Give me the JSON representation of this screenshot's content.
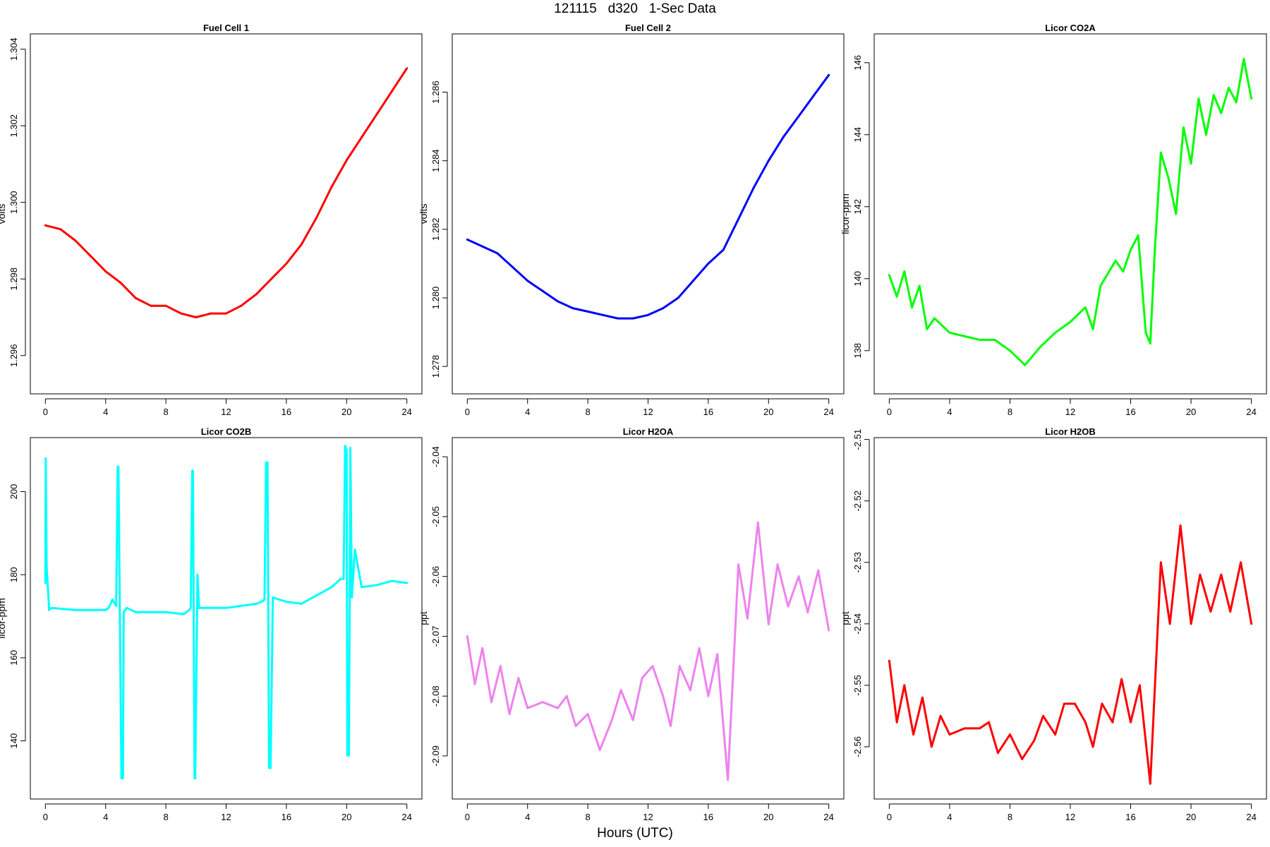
{
  "title": "121115   d320   1-Sec Data",
  "xlabel": "Hours (UTC)",
  "chart_data": [
    {
      "type": "line",
      "title": "Fuel Cell 1",
      "xlabel": "",
      "ylabel": "volts",
      "color": "#ff0000",
      "xlim": [
        -1,
        25
      ],
      "ylim": [
        1.295,
        1.3044
      ],
      "xticks": [
        0,
        4,
        8,
        12,
        16,
        20,
        24
      ],
      "yticks": [
        1.296,
        1.298,
        1.3,
        1.302,
        1.304
      ],
      "ytick_labels": [
        "1.296",
        "1.298",
        "1.300",
        "1.302",
        "1.304"
      ],
      "x": [
        0,
        1,
        2,
        3,
        4,
        5,
        6,
        7,
        8,
        9,
        10,
        11,
        12,
        13,
        14,
        15,
        16,
        17,
        18,
        19,
        20,
        21,
        22,
        23,
        24
      ],
      "series": [
        {
          "values": [
            1.2994,
            1.2993,
            1.299,
            1.2986,
            1.2982,
            1.2979,
            1.2975,
            1.2973,
            1.2973,
            1.2971,
            1.297,
            1.2971,
            1.2971,
            1.2973,
            1.2976,
            1.298,
            1.2984,
            1.2989,
            1.2996,
            1.3004,
            1.3011,
            1.3017,
            1.3023,
            1.3029,
            1.3035
          ]
        }
      ]
    },
    {
      "type": "line",
      "title": "Fuel Cell 2",
      "xlabel": "",
      "ylabel": "volts",
      "color": "#0000ff",
      "xlim": [
        -1,
        25
      ],
      "ylim": [
        1.2772,
        1.2877
      ],
      "xticks": [
        0,
        4,
        8,
        12,
        16,
        20,
        24
      ],
      "yticks": [
        1.278,
        1.28,
        1.282,
        1.284,
        1.286
      ],
      "ytick_labels": [
        "1.278",
        "1.280",
        "1.282",
        "1.284",
        "1.286"
      ],
      "x": [
        0,
        1,
        2,
        3,
        4,
        5,
        6,
        7,
        8,
        9,
        10,
        11,
        12,
        13,
        14,
        15,
        16,
        17,
        18,
        19,
        20,
        21,
        22,
        23,
        24
      ],
      "series": [
        {
          "values": [
            1.2817,
            1.2815,
            1.2813,
            1.2809,
            1.2805,
            1.2802,
            1.2799,
            1.2797,
            1.2796,
            1.2795,
            1.2794,
            1.2794,
            1.2795,
            1.2797,
            1.28,
            1.2805,
            1.281,
            1.2814,
            1.2823,
            1.2832,
            1.284,
            1.2847,
            1.2853,
            1.2859,
            1.2865
          ]
        }
      ]
    },
    {
      "type": "line",
      "title": "Licor CO2A",
      "xlabel": "",
      "ylabel": "licor-ppm",
      "color": "#00ff00",
      "xlim": [
        -1,
        25
      ],
      "ylim": [
        136.8,
        146.8
      ],
      "xticks": [
        0,
        4,
        8,
        12,
        16,
        20,
        24
      ],
      "yticks": [
        138,
        140,
        142,
        144,
        146
      ],
      "ytick_labels": [
        "138",
        "140",
        "142",
        "144",
        "146"
      ],
      "x": [
        0,
        0.5,
        1,
        1.5,
        2,
        2.5,
        3,
        4,
        5,
        6,
        7,
        8,
        9,
        10,
        11,
        12,
        13,
        13.5,
        14,
        15,
        15.5,
        16,
        16.5,
        17,
        17.3,
        17.6,
        18,
        18.5,
        19,
        19.5,
        20,
        20.5,
        21,
        21.5,
        22,
        22.5,
        23,
        23.5,
        24
      ],
      "series": [
        {
          "values": [
            140.1,
            139.5,
            140.2,
            139.2,
            139.8,
            138.6,
            138.9,
            138.5,
            138.4,
            138.3,
            138.3,
            138.0,
            137.6,
            138.1,
            138.5,
            138.8,
            139.2,
            138.6,
            139.8,
            140.5,
            140.2,
            140.8,
            141.2,
            138.5,
            138.2,
            140.8,
            143.5,
            142.8,
            141.8,
            144.2,
            143.2,
            145.0,
            144.0,
            145.1,
            144.6,
            145.3,
            144.9,
            146.1,
            145.0
          ]
        }
      ]
    },
    {
      "type": "line",
      "title": "Licor CO2B",
      "xlabel": "",
      "ylabel": "licor-ppm",
      "color": "#00ffff",
      "xlim": [
        -1,
        25
      ],
      "ylim": [
        126.0,
        213.0
      ],
      "xticks": [
        0,
        4,
        8,
        12,
        16,
        20,
        24
      ],
      "yticks": [
        140,
        160,
        180,
        200
      ],
      "ytick_labels": [
        "140",
        "160",
        "180",
        "200"
      ],
      "x": [
        0,
        0.02,
        0.08,
        0.25,
        0.4,
        2,
        4,
        4.2,
        4.45,
        4.7,
        4.8,
        4.85,
        5.05,
        5.15,
        5.2,
        5.4,
        6,
        8,
        9.2,
        9.55,
        9.65,
        9.75,
        9.8,
        9.9,
        9.95,
        10.1,
        10.2,
        12,
        14,
        14.35,
        14.55,
        14.65,
        14.75,
        14.85,
        14.95,
        15.1,
        16,
        17,
        18,
        19,
        19.6,
        19.8,
        19.9,
        20,
        20.05,
        20.15,
        20.25,
        20.35,
        20.55,
        21,
        22,
        23,
        24
      ],
      "series": [
        {
          "values": [
            178,
            208,
            182,
            171.5,
            172,
            171.5,
            171.5,
            172.0,
            174.0,
            172.5,
            206,
            206,
            131,
            131,
            171,
            172,
            171,
            171,
            170.5,
            171.5,
            172,
            205,
            205,
            131,
            131,
            180,
            172,
            172,
            173,
            173.5,
            174,
            207,
            207,
            133.5,
            133.5,
            174.5,
            173.5,
            173,
            175,
            177,
            179,
            179,
            211,
            210,
            136.5,
            136.5,
            210.5,
            174.5,
            186,
            177,
            177.5,
            178.5,
            178
          ]
        }
      ]
    },
    {
      "type": "line",
      "title": "Licor H2OA",
      "xlabel": "",
      "ylabel": "ppt",
      "color": "#ee82ee",
      "xlim": [
        -1,
        25
      ],
      "ylim": [
        -2.0972,
        -2.0368
      ],
      "xticks": [
        0,
        4,
        8,
        12,
        16,
        20,
        24
      ],
      "yticks": [
        -2.09,
        -2.08,
        -2.07,
        -2.06,
        -2.05,
        -2.04
      ],
      "ytick_labels": [
        "-2.09",
        "-2.08",
        "-2.07",
        "-2.06",
        "-2.05",
        "-2.04"
      ],
      "x": [
        0,
        0.5,
        1,
        1.6,
        2.2,
        2.8,
        3.4,
        4,
        5,
        6,
        6.6,
        7.2,
        8,
        8.8,
        9.6,
        10.2,
        11,
        11.6,
        12.3,
        13,
        13.5,
        14.1,
        14.8,
        15.4,
        16,
        16.6,
        17.3,
        18,
        18.6,
        19.3,
        20,
        20.6,
        21.3,
        22,
        22.6,
        23.3,
        24
      ],
      "series": [
        {
          "values": [
            -2.07,
            -2.078,
            -2.072,
            -2.081,
            -2.075,
            -2.083,
            -2.077,
            -2.082,
            -2.081,
            -2.082,
            -2.08,
            -2.085,
            -2.083,
            -2.089,
            -2.084,
            -2.079,
            -2.084,
            -2.077,
            -2.075,
            -2.08,
            -2.085,
            -2.075,
            -2.079,
            -2.072,
            -2.08,
            -2.073,
            -2.094,
            -2.058,
            -2.067,
            -2.051,
            -2.068,
            -2.058,
            -2.065,
            -2.06,
            -2.066,
            -2.059,
            -2.069
          ]
        }
      ]
    },
    {
      "type": "line",
      "title": "Licor H2OB",
      "xlabel": "",
      "ylabel": "ppt",
      "color": "#ff0000",
      "xlim": [
        -1,
        25
      ],
      "ylim": [
        -2.5685,
        -2.5097
      ],
      "xticks": [
        0,
        4,
        8,
        12,
        16,
        20,
        24
      ],
      "yticks": [
        -2.56,
        -2.55,
        -2.54,
        -2.53,
        -2.52,
        -2.51
      ],
      "ytick_labels": [
        "-2.56",
        "-2.55",
        "-2.54",
        "-2.53",
        "-2.52",
        "-2.51"
      ],
      "x": [
        0,
        0.5,
        1,
        1.6,
        2.2,
        2.8,
        3.4,
        4,
        5,
        6,
        6.6,
        7.2,
        8,
        8.8,
        9.6,
        10.2,
        11,
        11.6,
        12.3,
        13,
        13.5,
        14.1,
        14.8,
        15.4,
        16,
        16.6,
        17.3,
        18,
        18.6,
        19.3,
        20,
        20.6,
        21.3,
        22,
        22.6,
        23.3,
        24
      ],
      "series": [
        {
          "values": [
            -2.546,
            -2.556,
            -2.55,
            -2.558,
            -2.552,
            -2.56,
            -2.555,
            -2.558,
            -2.557,
            -2.557,
            -2.556,
            -2.561,
            -2.558,
            -2.562,
            -2.559,
            -2.555,
            -2.558,
            -2.553,
            -2.553,
            -2.556,
            -2.56,
            -2.553,
            -2.556,
            -2.549,
            -2.556,
            -2.55,
            -2.566,
            -2.53,
            -2.54,
            -2.524,
            -2.54,
            -2.532,
            -2.538,
            -2.532,
            -2.538,
            -2.53,
            -2.54
          ]
        }
      ]
    }
  ]
}
